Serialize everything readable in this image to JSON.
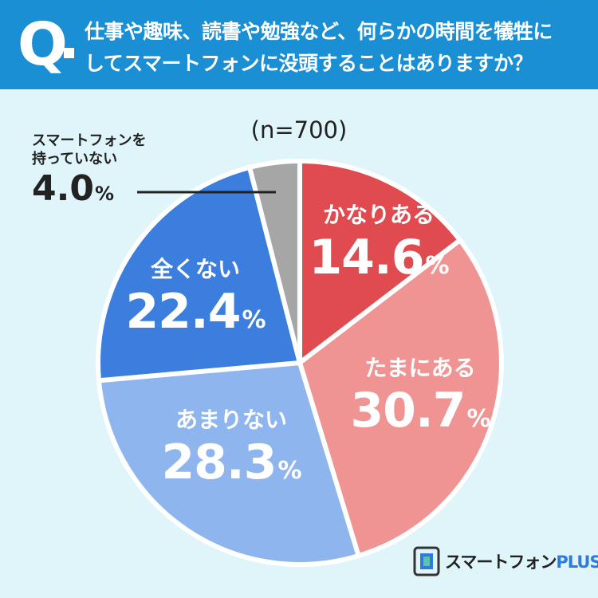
{
  "header": {
    "q_mark": "Q",
    "question_line1": "仕事や趣味、読書や勉強など、何らかの時間を犠牲に",
    "question_line2": "してスマートフォンに没頭することはありますか？"
  },
  "sample_size": "(n=700)",
  "brand": {
    "logo_name": "スマートフォン",
    "logo_plus": "PLUS"
  },
  "colors": {
    "header_bg": "#1a8fd3",
    "page_bg": "#dff5f9"
  },
  "chart_data": {
    "type": "pie",
    "unit": "%",
    "slices": [
      {
        "label": "かなりある",
        "value": 14.6,
        "value_text": "14.6",
        "color": "#e04b4f"
      },
      {
        "label": "たまにある",
        "value": 30.7,
        "value_text": "30.7",
        "color": "#f09393"
      },
      {
        "label": "あまりない",
        "value": 28.3,
        "value_text": "28.3",
        "color": "#8fb5ee"
      },
      {
        "label": "全くない",
        "value": 22.4,
        "value_text": "22.4",
        "color": "#3b7ede"
      },
      {
        "label_line1": "スマートフォンを",
        "label_line2": "持っていない",
        "value": 4.0,
        "value_text": "4.0",
        "color": "#a6a6a6"
      }
    ]
  }
}
